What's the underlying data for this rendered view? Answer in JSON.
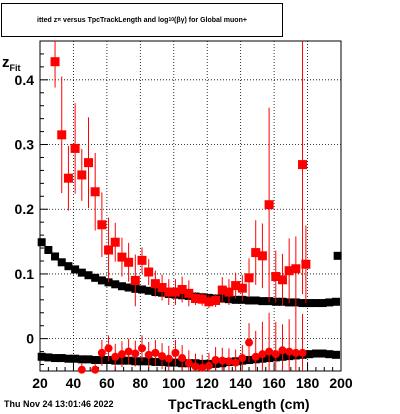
{
  "title_parts": {
    "a": "itted",
    "b": "z",
    "c": "π",
    "d": "versus TpcTrackLength and log",
    "e": "10",
    "f": "(βγ) for Global muon+"
  },
  "footer": {
    "date": "Thu Nov 24 13:01:46 2022"
  },
  "colors": {
    "black_series": "#000000",
    "red_series": "#ff0000",
    "grid": "#000000"
  },
  "chart_data": {
    "type": "scatter",
    "xlabel": "TpcTrackLength (cm)",
    "ylabel": {
      "main": "z",
      "sub": "Fit"
    },
    "xlim": [
      20,
      200
    ],
    "ylim": [
      -0.05,
      0.46
    ],
    "xticks": [
      20,
      40,
      60,
      80,
      100,
      120,
      140,
      160,
      180,
      200
    ],
    "xtick_labels": [
      "20",
      "40",
      "60",
      "80",
      "100",
      "120",
      "140",
      "160",
      "180",
      "200"
    ],
    "yticks": [
      0,
      0.1,
      0.2,
      0.3,
      0.4
    ],
    "ytick_labels": [
      "0",
      "0.1",
      "0.2",
      "0.3",
      "0.4"
    ],
    "grid": true,
    "series": [
      {
        "marker": "square",
        "color": "black",
        "x": [
          21,
          25,
          29,
          33,
          37,
          41,
          45,
          49,
          53,
          57,
          61,
          65,
          69,
          73,
          77,
          81,
          85,
          89,
          93,
          97,
          101,
          105,
          109,
          113,
          117,
          121,
          125,
          129,
          133,
          137,
          141,
          145,
          149,
          153,
          157,
          161,
          165,
          169,
          173,
          177,
          181,
          185,
          189,
          193,
          197
        ],
        "y": [
          0.149,
          0.137,
          0.127,
          0.118,
          0.112,
          0.107,
          0.102,
          0.098,
          0.094,
          0.09,
          0.087,
          0.084,
          0.081,
          0.079,
          0.077,
          0.076,
          0.074,
          0.072,
          0.071,
          0.069,
          0.068,
          0.067,
          0.066,
          0.065,
          0.064,
          0.063,
          0.062,
          0.062,
          0.061,
          0.06,
          0.06,
          0.059,
          0.059,
          0.058,
          0.058,
          0.057,
          0.057,
          0.056,
          0.056,
          0.055,
          0.055,
          0.055,
          0.055,
          0.056,
          0.057
        ]
      },
      {
        "marker": "square",
        "color": "black",
        "x": [
          198
        ],
        "y": [
          0.128
        ]
      },
      {
        "marker": "square",
        "color": "black",
        "x": [
          21,
          25,
          29,
          33,
          37,
          41,
          45,
          49,
          53,
          57,
          61,
          65,
          69,
          73,
          77,
          81,
          85,
          89,
          93,
          97,
          101,
          105,
          109,
          113,
          117,
          121,
          125,
          129,
          133,
          137,
          141,
          145,
          149,
          153,
          157,
          161,
          165,
          169,
          173,
          177,
          181,
          185,
          189,
          193,
          197
        ],
        "y": [
          -0.028,
          -0.029,
          -0.03,
          -0.03,
          -0.031,
          -0.031,
          -0.032,
          -0.032,
          -0.033,
          -0.033,
          -0.033,
          -0.034,
          -0.034,
          -0.034,
          -0.035,
          -0.035,
          -0.035,
          -0.036,
          -0.036,
          -0.037,
          -0.037,
          -0.038,
          -0.038,
          -0.038,
          -0.039,
          -0.039,
          -0.039,
          -0.038,
          -0.036,
          -0.035,
          -0.034,
          -0.033,
          -0.032,
          -0.031,
          -0.03,
          -0.029,
          -0.028,
          -0.027,
          -0.026,
          -0.025,
          -0.024,
          -0.023,
          -0.023,
          -0.024,
          -0.025
        ]
      },
      {
        "marker": "square",
        "color": "red",
        "x": [
          29,
          33,
          37,
          41,
          45,
          49,
          53,
          57,
          61,
          65,
          69,
          73,
          77,
          81,
          85,
          89,
          93,
          97,
          101,
          105,
          109,
          113,
          117,
          121,
          125,
          129,
          133,
          137,
          141,
          145,
          149,
          153,
          157,
          161,
          165,
          169,
          173,
          177
        ],
        "y": [
          0.428,
          0.315,
          0.248,
          0.294,
          0.253,
          0.272,
          0.227,
          0.176,
          0.137,
          0.149,
          0.126,
          0.118,
          0.09,
          0.121,
          0.103,
          0.085,
          0.079,
          0.072,
          0.072,
          0.076,
          0.07,
          0.062,
          0.061,
          0.057,
          0.059,
          0.075,
          0.072,
          0.082,
          0.078,
          0.094,
          0.133,
          0.128,
          0.207,
          0.096,
          0.091,
          0.105,
          0.108,
          0.269
        ],
        "err": [
          0.04,
          0.09,
          0.05,
          0.07,
          0.04,
          0.07,
          0.06,
          0.05,
          0.05,
          0.03,
          0.03,
          0.03,
          0.04,
          0.02,
          0.02,
          0.02,
          0.02,
          0.02,
          0.02,
          0.02,
          0.02,
          0.01,
          0.01,
          0.01,
          0.01,
          0.02,
          0.02,
          0.02,
          0.02,
          0.03,
          0.05,
          0.05,
          0.15,
          0.04,
          0.04,
          0.05,
          0.05,
          0.2
        ]
      },
      {
        "marker": "square",
        "color": "red",
        "x": [
          179
        ],
        "y": [
          0.115
        ],
        "err": [
          0.06
        ]
      },
      {
        "marker": "circle",
        "color": "red",
        "x": [
          45,
          53,
          57,
          61,
          65,
          69,
          73,
          77,
          81,
          85,
          89,
          93,
          97,
          101,
          105,
          109,
          113,
          117,
          121,
          125,
          129,
          133,
          137,
          141,
          145,
          149,
          153,
          157,
          161,
          165,
          169,
          173,
          177
        ],
        "y": [
          -0.048,
          -0.048,
          -0.022,
          -0.015,
          -0.028,
          -0.024,
          -0.02,
          -0.023,
          -0.015,
          -0.025,
          -0.022,
          -0.027,
          -0.031,
          -0.022,
          -0.03,
          -0.038,
          -0.043,
          -0.045,
          -0.042,
          -0.033,
          -0.034,
          -0.035,
          -0.037,
          -0.03,
          -0.006,
          -0.028,
          -0.024,
          -0.02,
          -0.024,
          -0.018,
          -0.02,
          -0.022,
          -0.022
        ],
        "err": [
          0.01,
          0.01,
          0.02,
          0.02,
          0.02,
          0.02,
          0.02,
          0.02,
          0.02,
          0.02,
          0.02,
          0.02,
          0.02,
          0.02,
          0.02,
          0.02,
          0.02,
          0.02,
          0.02,
          0.02,
          0.02,
          0.02,
          0.02,
          0.02,
          0.03,
          0.04,
          0.05,
          0.06,
          0.05,
          0.04,
          0.05,
          0.08,
          0.06
        ]
      }
    ]
  }
}
